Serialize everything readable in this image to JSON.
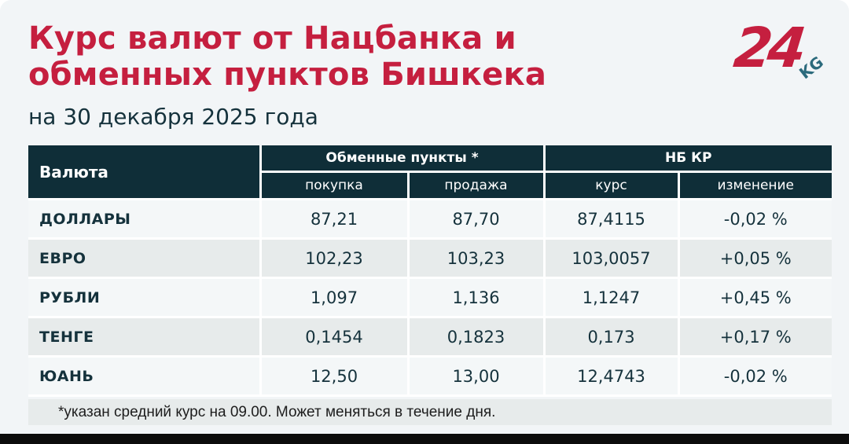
{
  "header": {
    "title_line1": "Курс валют от Нацбанка и",
    "title_line2": "обменных пунктов Бишкека",
    "date": "на 30 декабря 2025 года",
    "logo": {
      "number": "24",
      "suffix": "KG"
    }
  },
  "table": {
    "currency_header": "Валюта",
    "group_exchange": "Обменные пункты *",
    "group_nbkr": "НБ КР",
    "sub_headers": {
      "buy": "покупка",
      "sell": "продажа",
      "rate": "курс",
      "change": "изменение"
    },
    "footnote": "*указан средний курс на 09.00. Может меняться в течение дня."
  },
  "chart_data": {
    "type": "table",
    "title": "Курс валют от Нацбанка и обменных пунктов Бишкека",
    "subtitle": "на 30 декабря 2025 года",
    "columns": [
      "Валюта",
      "Обменные пункты * — покупка",
      "Обменные пункты * — продажа",
      "НБ КР — курс",
      "НБ КР — изменение"
    ],
    "rows": [
      {
        "currency": "ДОЛЛАРЫ",
        "buy": "87,21",
        "sell": "87,70",
        "rate": "87,4115",
        "change": "-0,02 %"
      },
      {
        "currency": "ЕВРО",
        "buy": "102,23",
        "sell": "103,23",
        "rate": "103,0057",
        "change": "+0,05 %"
      },
      {
        "currency": "РУБЛИ",
        "buy": "1,097",
        "sell": "1,136",
        "rate": "1,1247",
        "change": "+0,45 %"
      },
      {
        "currency": "ТЕНГЕ",
        "buy": "0,1454",
        "sell": "0,1823",
        "rate": "0,173",
        "change": "+0,17 %"
      },
      {
        "currency": "ЮАНЬ",
        "buy": "12,50",
        "sell": "13,00",
        "rate": "12,4743",
        "change": "-0,02 %"
      }
    ]
  },
  "colors": {
    "accent_red": "#c51f3f",
    "header_teal": "#0f2e38",
    "text_ink": "#15323c",
    "background": "#f2f5f7",
    "stripe_light": "#f4f7f8",
    "stripe_gray": "#e7ebeb",
    "logo_kg_teal": "#2b6a7c"
  }
}
